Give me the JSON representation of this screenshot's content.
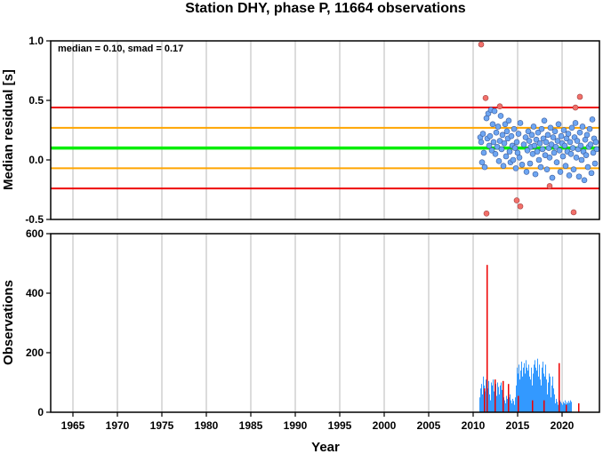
{
  "title": "Station DHY, phase P, 11664 observations",
  "colors": {
    "median_line": "#00ee00",
    "smad_lines": "#ffa500",
    "limit_lines": "#ee0000",
    "points_inlier": "#6ea6f2",
    "points_outlier": "#f2706a",
    "bars_main": "#3399ff",
    "bars_highlight": "#ee0000",
    "grid": "#9a9a9a"
  },
  "chart_data": [
    {
      "type": "scatter",
      "annotation": "median = 0.10, smad = 0.17",
      "xlabel": "",
      "ylabel": "Median residual [s]",
      "xlim": [
        1962.5,
        2024.2
      ],
      "ylim": [
        -0.5,
        1.0
      ],
      "yticks": [
        "1.0",
        "0.5",
        "0.0",
        "-0.5"
      ],
      "ytick_values": [
        1.0,
        0.5,
        0.0,
        -0.5
      ],
      "grid": true,
      "reference_lines": [
        {
          "y": 0.1,
          "color": "#00ee00"
        },
        {
          "y": 0.27,
          "color": "#ffa500"
        },
        {
          "y": -0.07,
          "color": "#ffa500"
        },
        {
          "y": 0.44,
          "color": "#ee0000"
        },
        {
          "y": -0.24,
          "color": "#ee0000"
        }
      ],
      "outliers": [
        [
          2010.9,
          0.97
        ],
        [
          2011.4,
          0.52
        ],
        [
          2011.5,
          -0.45
        ],
        [
          2013.0,
          0.45
        ],
        [
          2014.9,
          -0.34
        ],
        [
          2015.3,
          -0.39
        ],
        [
          2018.6,
          -0.22
        ],
        [
          2021.3,
          -0.44
        ],
        [
          2021.5,
          0.44
        ],
        [
          2022.0,
          0.53
        ]
      ],
      "points": [
        [
          2010.8,
          0.19
        ],
        [
          2010.9,
          0.15
        ],
        [
          2011.0,
          -0.02
        ],
        [
          2011.1,
          0.22
        ],
        [
          2011.2,
          0.06
        ],
        [
          2011.3,
          -0.06
        ],
        [
          2011.5,
          0.35
        ],
        [
          2011.6,
          0.18
        ],
        [
          2011.7,
          0.39
        ],
        [
          2011.8,
          0.12
        ],
        [
          2011.9,
          0.2
        ],
        [
          2012.0,
          0.42
        ],
        [
          2012.1,
          0.08
        ],
        [
          2012.2,
          0.3
        ],
        [
          2012.3,
          0.15
        ],
        [
          2012.4,
          0.41
        ],
        [
          2012.5,
          0.05
        ],
        [
          2012.6,
          0.23
        ],
        [
          2012.7,
          0.11
        ],
        [
          2012.8,
          0.28
        ],
        [
          2012.9,
          -0.01
        ],
        [
          2013.0,
          0.16
        ],
        [
          2013.1,
          0.37
        ],
        [
          2013.2,
          0.09
        ],
        [
          2013.3,
          0.21
        ],
        [
          2013.4,
          -0.05
        ],
        [
          2013.5,
          0.14
        ],
        [
          2013.6,
          0.3
        ],
        [
          2013.7,
          0.03
        ],
        [
          2013.8,
          0.24
        ],
        [
          2013.9,
          0.18
        ],
        [
          2014.0,
          0.33
        ],
        [
          2014.1,
          0.07
        ],
        [
          2014.2,
          -0.02
        ],
        [
          2014.3,
          0.2
        ],
        [
          2014.4,
          0.12
        ],
        [
          2014.5,
          0.0
        ],
        [
          2014.6,
          0.26
        ],
        [
          2014.7,
          0.1
        ],
        [
          2014.8,
          -0.07
        ],
        [
          2014.9,
          0.15
        ],
        [
          2015.0,
          0.06
        ],
        [
          2015.1,
          0.22
        ],
        [
          2015.2,
          0.02
        ],
        [
          2015.3,
          0.31
        ],
        [
          2015.5,
          -0.04
        ],
        [
          2015.7,
          0.13
        ],
        [
          2015.9,
          0.19
        ],
        [
          2016.0,
          -0.1
        ],
        [
          2016.1,
          0.08
        ],
        [
          2016.2,
          0.24
        ],
        [
          2016.3,
          0.16
        ],
        [
          2016.4,
          -0.03
        ],
        [
          2016.5,
          0.11
        ],
        [
          2016.6,
          0.21
        ],
        [
          2016.7,
          0.05
        ],
        [
          2016.8,
          0.28
        ],
        [
          2016.9,
          0.12
        ],
        [
          2017.0,
          -0.12
        ],
        [
          2017.1,
          0.17
        ],
        [
          2017.2,
          0.07
        ],
        [
          2017.3,
          0.23
        ],
        [
          2017.4,
          0.0
        ],
        [
          2017.5,
          0.14
        ],
        [
          2017.6,
          -0.06
        ],
        [
          2017.7,
          0.26
        ],
        [
          2017.8,
          0.09
        ],
        [
          2017.9,
          0.18
        ],
        [
          2018.0,
          0.33
        ],
        [
          2018.1,
          0.04
        ],
        [
          2018.2,
          0.15
        ],
        [
          2018.3,
          -0.08
        ],
        [
          2018.4,
          0.21
        ],
        [
          2018.5,
          0.1
        ],
        [
          2018.6,
          0.02
        ],
        [
          2018.7,
          0.27
        ],
        [
          2018.8,
          0.13
        ],
        [
          2018.9,
          -0.15
        ],
        [
          2019.0,
          0.19
        ],
        [
          2019.1,
          0.06
        ],
        [
          2019.2,
          0.24
        ],
        [
          2019.3,
          0.11
        ],
        [
          2019.4,
          -0.02
        ],
        [
          2019.5,
          0.16
        ],
        [
          2019.6,
          0.3
        ],
        [
          2019.7,
          0.08
        ],
        [
          2019.8,
          -0.1
        ],
        [
          2019.9,
          0.2
        ],
        [
          2020.0,
          0.14
        ],
        [
          2020.1,
          0.03
        ],
        [
          2020.2,
          0.25
        ],
        [
          2020.3,
          0.12
        ],
        [
          2020.4,
          -0.05
        ],
        [
          2020.5,
          0.18
        ],
        [
          2020.6,
          0.07
        ],
        [
          2020.7,
          0.22
        ],
        [
          2020.8,
          -0.13
        ],
        [
          2020.9,
          0.15
        ],
        [
          2021.0,
          0.05
        ],
        [
          2021.1,
          0.27
        ],
        [
          2021.2,
          0.1
        ],
        [
          2021.3,
          -0.08
        ],
        [
          2021.4,
          0.19
        ],
        [
          2021.5,
          0.31
        ],
        [
          2021.6,
          0.02
        ],
        [
          2021.7,
          0.16
        ],
        [
          2021.8,
          0.09
        ],
        [
          2021.9,
          -0.14
        ],
        [
          2022.0,
          0.23
        ],
        [
          2022.1,
          0.12
        ],
        [
          2022.2,
          0.0
        ],
        [
          2022.3,
          0.28
        ],
        [
          2022.4,
          0.07
        ],
        [
          2022.5,
          -0.17
        ],
        [
          2022.6,
          0.17
        ],
        [
          2022.7,
          0.04
        ],
        [
          2022.8,
          0.21
        ],
        [
          2022.9,
          -0.06
        ],
        [
          2023.0,
          0.11
        ],
        [
          2023.1,
          0.26
        ],
        [
          2023.2,
          0.13
        ],
        [
          2023.3,
          -0.11
        ],
        [
          2023.4,
          0.34
        ],
        [
          2023.5,
          0.06
        ],
        [
          2023.6,
          0.18
        ],
        [
          2023.7,
          -0.03
        ],
        [
          2023.8,
          0.15
        ],
        [
          2023.9,
          0.09
        ]
      ]
    },
    {
      "type": "bar",
      "xlabel": "Year",
      "ylabel": "Observations",
      "xlim": [
        1962.5,
        2024.2
      ],
      "ylim": [
        0,
        600
      ],
      "yticks": [
        "600",
        "400",
        "200",
        "0"
      ],
      "ytick_values": [
        600,
        400,
        200,
        0
      ],
      "xticks": [
        "1965",
        "1970",
        "1975",
        "1980",
        "1985",
        "1990",
        "1995",
        "2000",
        "2005",
        "2010",
        "2015",
        "2020"
      ],
      "xtick_values": [
        1965,
        1970,
        1975,
        1980,
        1985,
        1990,
        1995,
        2000,
        2005,
        2010,
        2015,
        2020
      ],
      "grid": true,
      "bar_start": 2010.7,
      "bar_step": 0.1,
      "values": [
        50,
        80,
        95,
        60,
        120,
        90,
        70,
        110,
        95,
        80,
        105,
        60,
        40,
        100,
        90,
        110,
        70,
        80,
        95,
        55,
        100,
        85,
        60,
        90,
        100,
        75,
        90,
        50,
        40,
        30,
        55,
        45,
        35,
        50,
        60,
        40,
        30,
        45,
        38,
        25,
        50,
        90,
        150,
        130,
        160,
        110,
        140,
        170,
        120,
        150,
        165,
        130,
        175,
        150,
        140,
        160,
        120,
        110,
        150,
        90,
        130,
        160,
        175,
        150,
        140,
        180,
        120,
        160,
        110,
        90,
        150,
        170,
        130,
        120,
        160,
        110,
        60,
        100,
        130,
        120,
        50,
        90,
        120,
        80,
        60,
        30,
        45,
        35,
        25,
        30,
        40,
        35,
        30,
        25,
        35,
        30,
        40,
        28,
        35,
        30,
        38,
        32,
        40,
        35
      ],
      "highlight_bars": [
        {
          "x": 2011.2,
          "value": 80
        },
        {
          "x": 2011.5,
          "value": 495
        },
        {
          "x": 2012.4,
          "value": 110
        },
        {
          "x": 2013.3,
          "value": 105
        },
        {
          "x": 2013.9,
          "value": 95
        },
        {
          "x": 2015.0,
          "value": 55
        },
        {
          "x": 2016.6,
          "value": 40
        },
        {
          "x": 2017.9,
          "value": 40
        },
        {
          "x": 2019.6,
          "value": 165
        },
        {
          "x": 2020.4,
          "value": 25
        },
        {
          "x": 2021.8,
          "value": 30
        }
      ]
    }
  ]
}
